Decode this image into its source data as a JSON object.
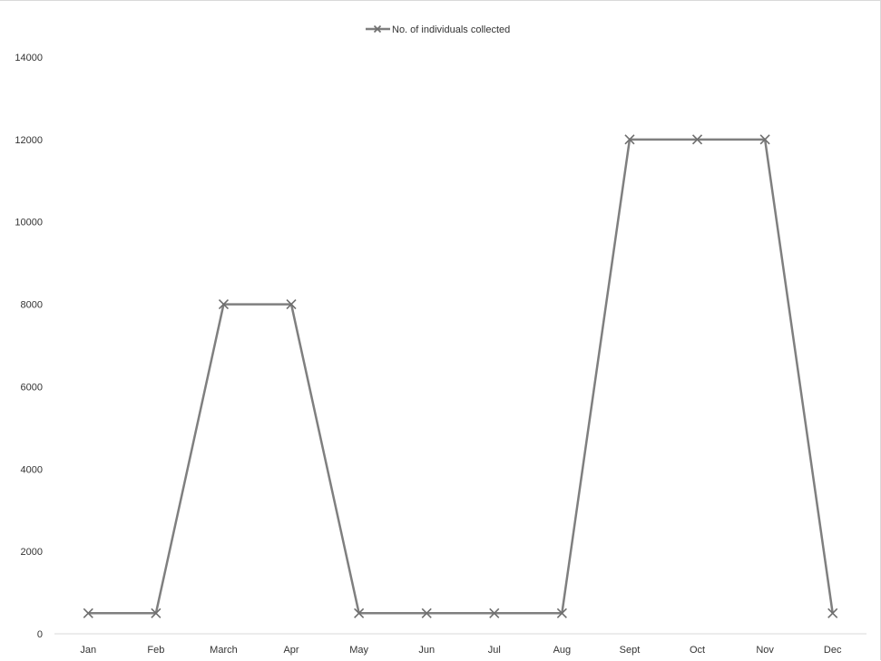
{
  "chart_data": {
    "type": "line",
    "categories": [
      "Jan",
      "Feb",
      "March",
      "Apr",
      "May",
      "Jun",
      "Jul",
      "Aug",
      "Sept",
      "Oct",
      "Nov",
      "Dec"
    ],
    "series": [
      {
        "name": "No. of individuals collected",
        "values": [
          500,
          500,
          8000,
          8000,
          500,
          500,
          500,
          500,
          12000,
          12000,
          12000,
          500
        ],
        "color": "#7f7f7f",
        "marker": "x"
      }
    ],
    "title": "",
    "xlabel": "",
    "ylabel": "",
    "ylim": [
      0,
      14000
    ],
    "yticks": [
      0,
      2000,
      4000,
      6000,
      8000,
      10000,
      12000,
      14000
    ],
    "grid": false,
    "legend": "top-center"
  }
}
